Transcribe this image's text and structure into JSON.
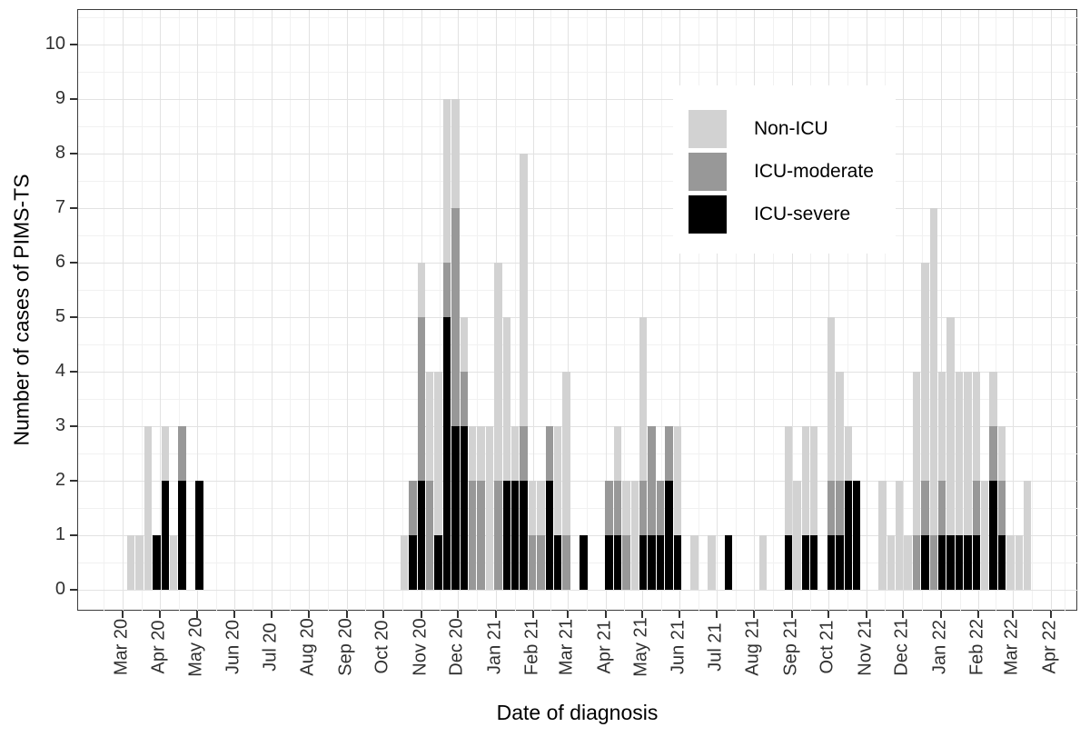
{
  "chart_data": {
    "type": "bar",
    "subtype": "stacked-weekly-histogram",
    "title": "",
    "xlabel": "Date of diagnosis",
    "ylabel": "Number of cases of PIMS-TS",
    "ylim": [
      0,
      10
    ],
    "yticks": [
      0,
      1,
      2,
      3,
      4,
      5,
      6,
      7,
      8,
      9,
      10
    ],
    "grid": "major-and-minor",
    "legend_position": "inside-top-right",
    "legend": [
      {
        "label": "Non-ICU",
        "color": "#d2d2d2"
      },
      {
        "label": "ICU-moderate",
        "color": "#989898"
      },
      {
        "label": "ICU-severe",
        "color": "#000000"
      }
    ],
    "stack_order_bottom_to_top": [
      "ICU-severe",
      "ICU-moderate",
      "Non-ICU"
    ],
    "x_ticks": [
      {
        "label": "Mar 20",
        "day": 0
      },
      {
        "label": "Apr 20",
        "day": 31
      },
      {
        "label": "May 20",
        "day": 61
      },
      {
        "label": "Jun 20",
        "day": 92
      },
      {
        "label": "Jul 20",
        "day": 122
      },
      {
        "label": "Aug 20",
        "day": 153
      },
      {
        "label": "Sep 20",
        "day": 184
      },
      {
        "label": "Oct 20",
        "day": 214
      },
      {
        "label": "Nov 20",
        "day": 245
      },
      {
        "label": "Dec 20",
        "day": 275
      },
      {
        "label": "Jan 21",
        "day": 306
      },
      {
        "label": "Feb 21",
        "day": 337
      },
      {
        "label": "Mar 21",
        "day": 365
      },
      {
        "label": "Apr 21",
        "day": 396
      },
      {
        "label": "May 21",
        "day": 426
      },
      {
        "label": "Jun 21",
        "day": 457
      },
      {
        "label": "Jul 21",
        "day": 487
      },
      {
        "label": "Aug 21",
        "day": 518
      },
      {
        "label": "Sep 21",
        "day": 549
      },
      {
        "label": "Oct 21",
        "day": 579
      },
      {
        "label": "Nov 21",
        "day": 610
      },
      {
        "label": "Dec 21",
        "day": 640
      },
      {
        "label": "Jan 22",
        "day": 671
      },
      {
        "label": "Feb 22",
        "day": 702
      },
      {
        "label": "Mar 22",
        "day": 730
      },
      {
        "label": "Apr 22",
        "day": 761
      }
    ],
    "bars_note": "week = weekly bin index from first case week (early Mar 2020); counts per category",
    "bars": [
      {
        "week": 0,
        "severe": 0,
        "moderate": 0,
        "non_icu": 1
      },
      {
        "week": 1,
        "severe": 0,
        "moderate": 0,
        "non_icu": 1
      },
      {
        "week": 2,
        "severe": 0,
        "moderate": 0,
        "non_icu": 3
      },
      {
        "week": 3,
        "severe": 1,
        "moderate": 0,
        "non_icu": 0
      },
      {
        "week": 4,
        "severe": 2,
        "moderate": 0,
        "non_icu": 1
      },
      {
        "week": 5,
        "severe": 0,
        "moderate": 0,
        "non_icu": 1
      },
      {
        "week": 6,
        "severe": 2,
        "moderate": 1,
        "non_icu": 0
      },
      {
        "week": 8,
        "severe": 2,
        "moderate": 0,
        "non_icu": 0
      },
      {
        "week": 32,
        "severe": 0,
        "moderate": 0,
        "non_icu": 1
      },
      {
        "week": 33,
        "severe": 1,
        "moderate": 1,
        "non_icu": 0
      },
      {
        "week": 34,
        "severe": 2,
        "moderate": 3,
        "non_icu": 1
      },
      {
        "week": 35,
        "severe": 0,
        "moderate": 2,
        "non_icu": 2
      },
      {
        "week": 36,
        "severe": 1,
        "moderate": 0,
        "non_icu": 3
      },
      {
        "week": 37,
        "severe": 5,
        "moderate": 1,
        "non_icu": 3
      },
      {
        "week": 38,
        "severe": 3,
        "moderate": 4,
        "non_icu": 2
      },
      {
        "week": 39,
        "severe": 3,
        "moderate": 1,
        "non_icu": 1
      },
      {
        "week": 40,
        "severe": 0,
        "moderate": 2,
        "non_icu": 1
      },
      {
        "week": 41,
        "severe": 0,
        "moderate": 2,
        "non_icu": 1
      },
      {
        "week": 42,
        "severe": 0,
        "moderate": 0,
        "non_icu": 3
      },
      {
        "week": 43,
        "severe": 0,
        "moderate": 2,
        "non_icu": 4
      },
      {
        "week": 44,
        "severe": 2,
        "moderate": 0,
        "non_icu": 3
      },
      {
        "week": 45,
        "severe": 2,
        "moderate": 0,
        "non_icu": 1
      },
      {
        "week": 46,
        "severe": 2,
        "moderate": 1,
        "non_icu": 5
      },
      {
        "week": 47,
        "severe": 0,
        "moderate": 1,
        "non_icu": 1
      },
      {
        "week": 48,
        "severe": 0,
        "moderate": 1,
        "non_icu": 1
      },
      {
        "week": 49,
        "severe": 2,
        "moderate": 1,
        "non_icu": 0
      },
      {
        "week": 50,
        "severe": 1,
        "moderate": 0,
        "non_icu": 2
      },
      {
        "week": 51,
        "severe": 0,
        "moderate": 1,
        "non_icu": 3
      },
      {
        "week": 53,
        "severe": 1,
        "moderate": 0,
        "non_icu": 0
      },
      {
        "week": 56,
        "severe": 1,
        "moderate": 1,
        "non_icu": 0
      },
      {
        "week": 57,
        "severe": 1,
        "moderate": 1,
        "non_icu": 1
      },
      {
        "week": 58,
        "severe": 0,
        "moderate": 1,
        "non_icu": 1
      },
      {
        "week": 59,
        "severe": 0,
        "moderate": 0,
        "non_icu": 2
      },
      {
        "week": 60,
        "severe": 1,
        "moderate": 1,
        "non_icu": 3
      },
      {
        "week": 61,
        "severe": 1,
        "moderate": 2,
        "non_icu": 0
      },
      {
        "week": 62,
        "severe": 1,
        "moderate": 1,
        "non_icu": 0
      },
      {
        "week": 63,
        "severe": 2,
        "moderate": 1,
        "non_icu": 0
      },
      {
        "week": 64,
        "severe": 1,
        "moderate": 0,
        "non_icu": 2
      },
      {
        "week": 66,
        "severe": 0,
        "moderate": 0,
        "non_icu": 1
      },
      {
        "week": 68,
        "severe": 0,
        "moderate": 0,
        "non_icu": 1
      },
      {
        "week": 70,
        "severe": 1,
        "moderate": 0,
        "non_icu": 0
      },
      {
        "week": 74,
        "severe": 0,
        "moderate": 0,
        "non_icu": 1
      },
      {
        "week": 77,
        "severe": 1,
        "moderate": 0,
        "non_icu": 2
      },
      {
        "week": 78,
        "severe": 0,
        "moderate": 0,
        "non_icu": 2
      },
      {
        "week": 79,
        "severe": 1,
        "moderate": 0,
        "non_icu": 2
      },
      {
        "week": 80,
        "severe": 1,
        "moderate": 0,
        "non_icu": 2
      },
      {
        "week": 82,
        "severe": 1,
        "moderate": 1,
        "non_icu": 3
      },
      {
        "week": 83,
        "severe": 1,
        "moderate": 1,
        "non_icu": 2
      },
      {
        "week": 84,
        "severe": 2,
        "moderate": 0,
        "non_icu": 1
      },
      {
        "week": 85,
        "severe": 2,
        "moderate": 0,
        "non_icu": 0
      },
      {
        "week": 88,
        "severe": 0,
        "moderate": 0,
        "non_icu": 2
      },
      {
        "week": 89,
        "severe": 0,
        "moderate": 0,
        "non_icu": 1
      },
      {
        "week": 90,
        "severe": 0,
        "moderate": 0,
        "non_icu": 2
      },
      {
        "week": 91,
        "severe": 0,
        "moderate": 0,
        "non_icu": 1
      },
      {
        "week": 92,
        "severe": 0,
        "moderate": 1,
        "non_icu": 3
      },
      {
        "week": 93,
        "severe": 1,
        "moderate": 1,
        "non_icu": 4
      },
      {
        "week": 94,
        "severe": 0,
        "moderate": 1,
        "non_icu": 6
      },
      {
        "week": 95,
        "severe": 1,
        "moderate": 1,
        "non_icu": 2
      },
      {
        "week": 96,
        "severe": 1,
        "moderate": 0,
        "non_icu": 4
      },
      {
        "week": 97,
        "severe": 1,
        "moderate": 0,
        "non_icu": 3
      },
      {
        "week": 98,
        "severe": 1,
        "moderate": 0,
        "non_icu": 3
      },
      {
        "week": 99,
        "severe": 1,
        "moderate": 1,
        "non_icu": 2
      },
      {
        "week": 100,
        "severe": 0,
        "moderate": 0,
        "non_icu": 2
      },
      {
        "week": 101,
        "severe": 2,
        "moderate": 1,
        "non_icu": 1
      },
      {
        "week": 102,
        "severe": 1,
        "moderate": 1,
        "non_icu": 1
      },
      {
        "week": 103,
        "severe": 0,
        "moderate": 0,
        "non_icu": 1
      },
      {
        "week": 104,
        "severe": 0,
        "moderate": 0,
        "non_icu": 1
      },
      {
        "week": 105,
        "severe": 0,
        "moderate": 0,
        "non_icu": 2
      }
    ]
  },
  "colors": {
    "non_icu": "#d2d2d2",
    "moderate": "#989898",
    "severe": "#000000",
    "grid_major": "#e2e2e2",
    "grid_minor": "#f1f1f1",
    "panel_border": "#3c3c3c",
    "tick_text": "#303030",
    "title_text": "#000000"
  }
}
